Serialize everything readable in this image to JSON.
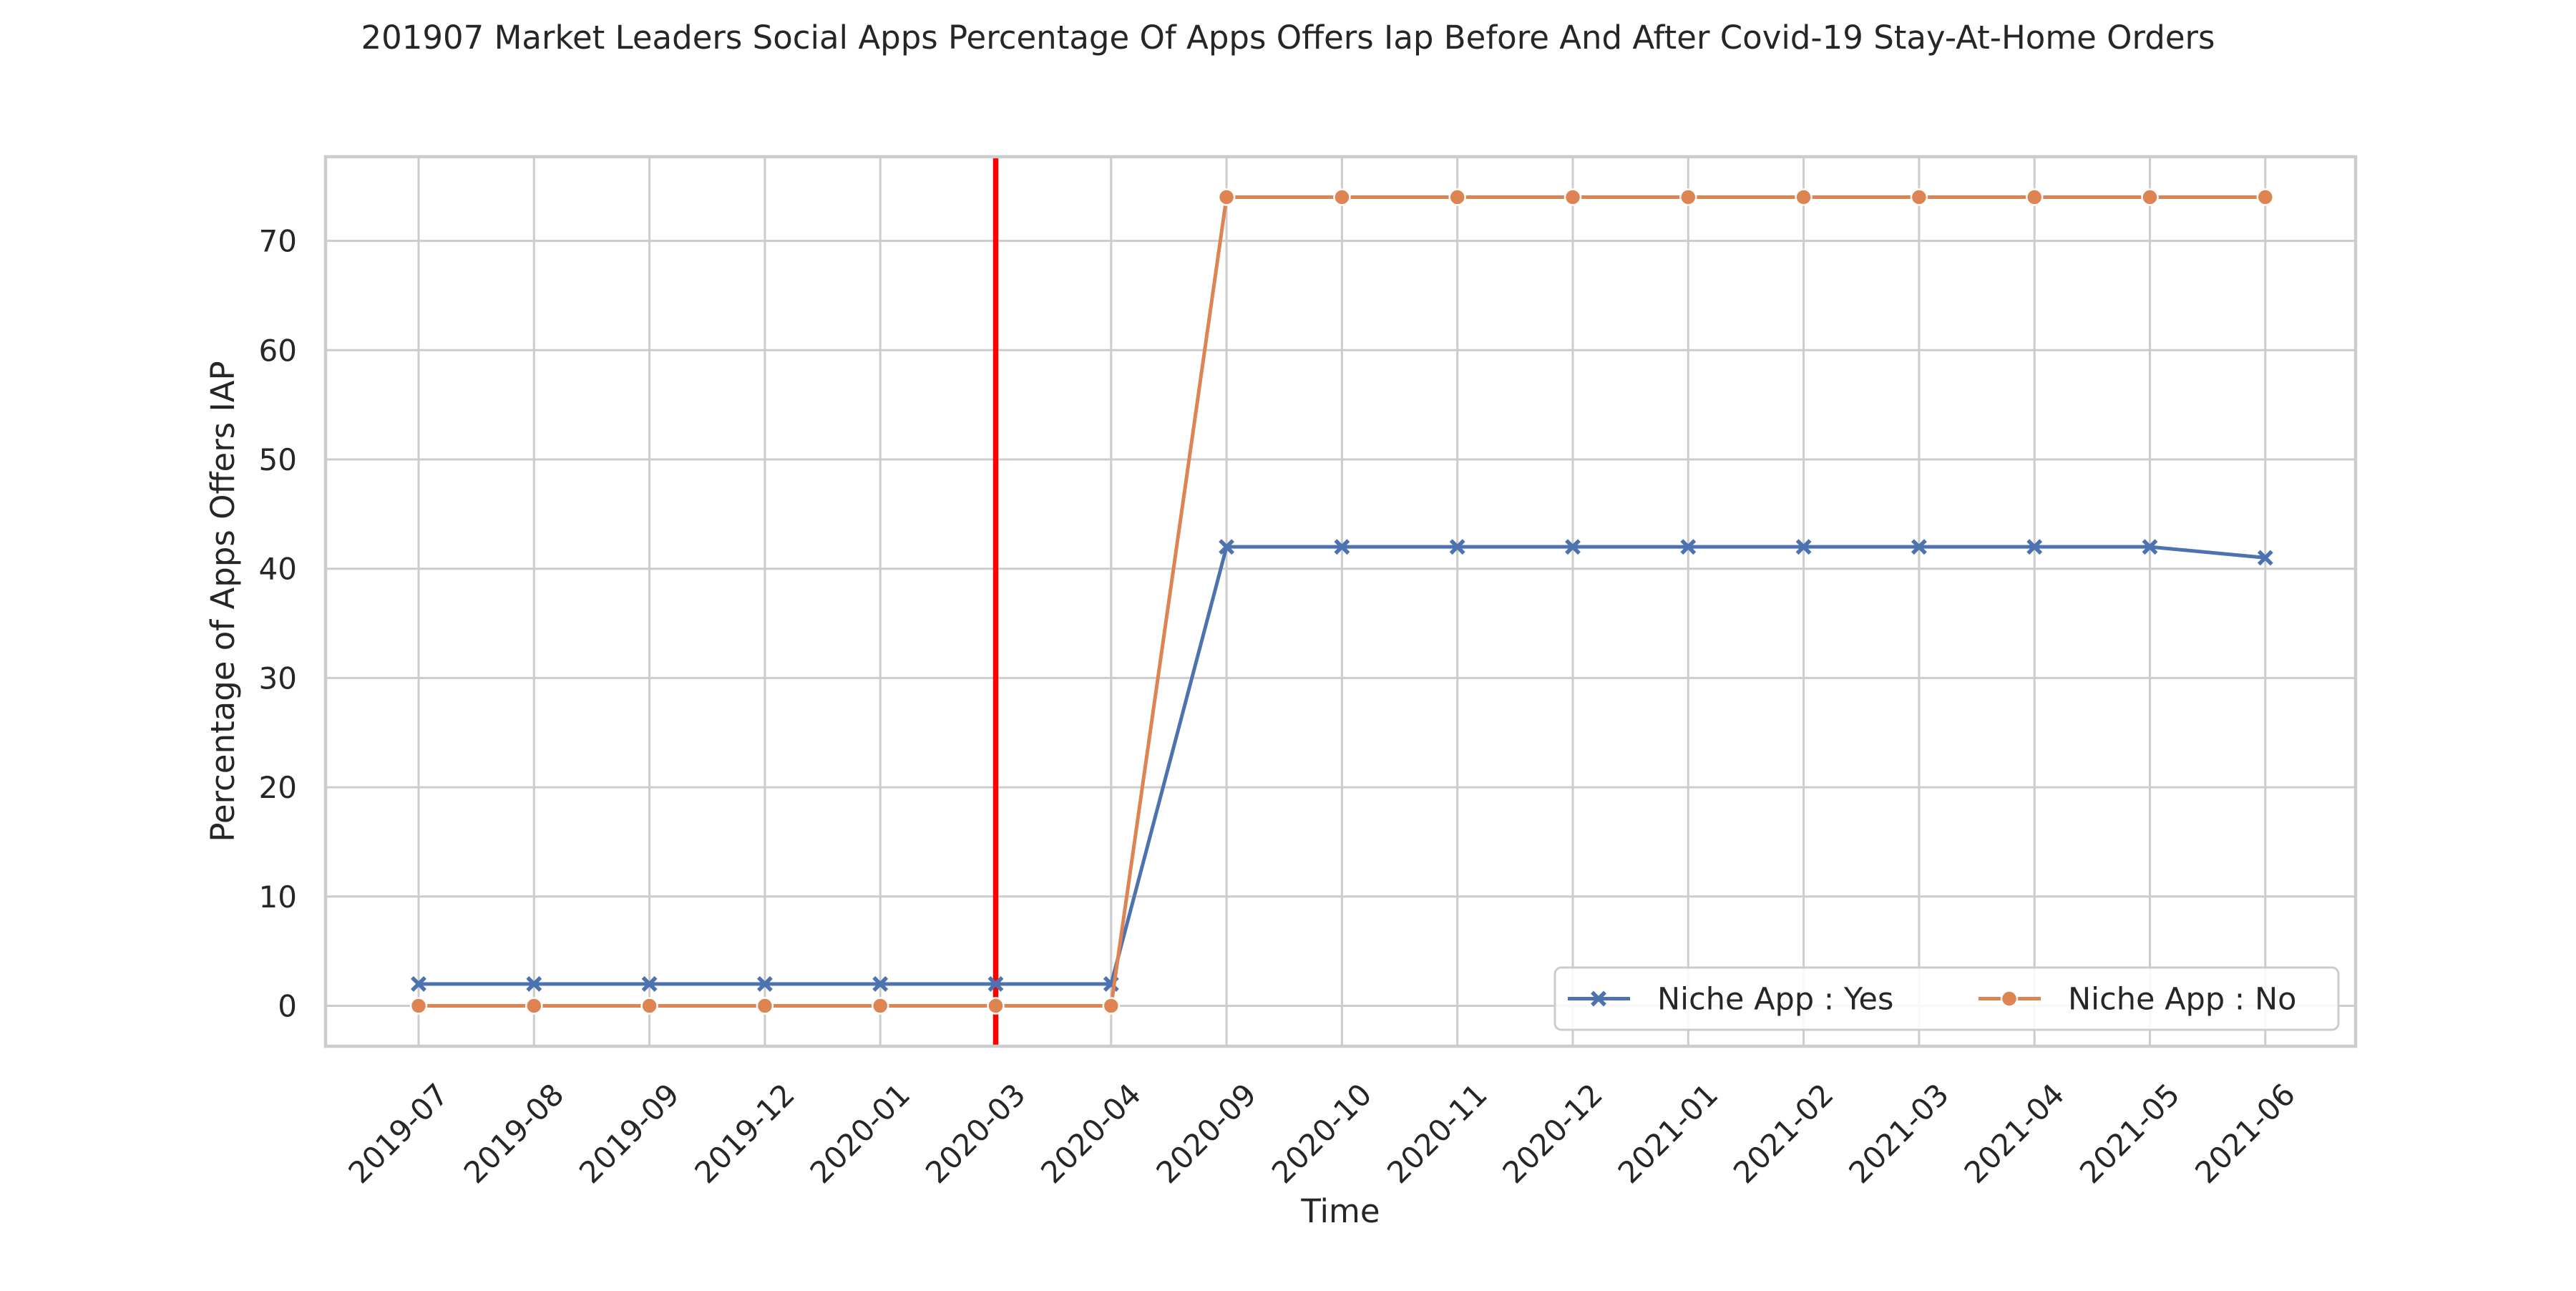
{
  "chart_data": {
    "type": "line",
    "title": "201907 Market Leaders Social Apps Percentage Of Apps Offers Iap Before And After Covid-19 Stay-At-Home Orders",
    "xlabel": "Time",
    "ylabel": "Percentage of Apps Offers IAP",
    "categories": [
      "2019-07",
      "2019-08",
      "2019-09",
      "2019-12",
      "2020-01",
      "2020-03",
      "2020-04",
      "2020-09",
      "2020-10",
      "2020-11",
      "2020-12",
      "2021-01",
      "2021-02",
      "2021-03",
      "2021-04",
      "2021-05",
      "2021-06"
    ],
    "yticks": [
      0,
      10,
      20,
      30,
      40,
      50,
      60,
      70
    ],
    "ylim": [
      -3.7,
      77.7
    ],
    "grid": true,
    "legend_position": "lower-right",
    "reference_line": {
      "x": "2020-03",
      "color": "#ff0000"
    },
    "series": [
      {
        "name": "Niche App : Yes",
        "color": "#4c72b0",
        "marker": "x",
        "values": [
          2,
          2,
          2,
          2,
          2,
          2,
          2,
          42,
          42,
          42,
          42,
          42,
          42,
          42,
          42,
          42,
          41
        ]
      },
      {
        "name": "Niche App : No",
        "color": "#dd8452",
        "marker": "o",
        "values": [
          0,
          0,
          0,
          0,
          0,
          0,
          0,
          74,
          74,
          74,
          74,
          74,
          74,
          74,
          74,
          74,
          74
        ]
      }
    ]
  }
}
